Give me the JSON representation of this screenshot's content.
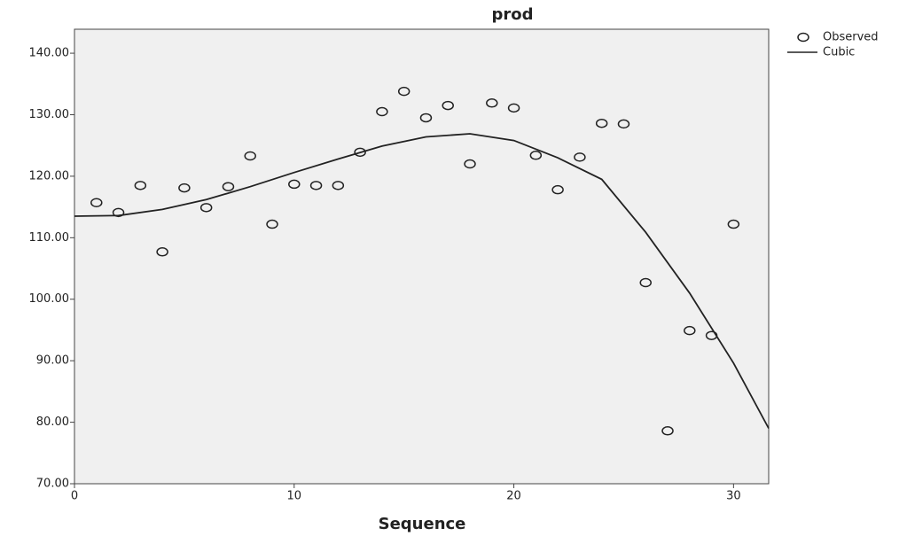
{
  "chart_data": {
    "type": "scatter",
    "title": "prod",
    "x_label": "Sequence",
    "xlim": [
      0,
      31.6
    ],
    "ylim": [
      70,
      143.9
    ],
    "xticks": [
      0,
      10,
      20,
      30
    ],
    "yticks": [
      {
        "value": 70,
        "label": "70.00"
      },
      {
        "value": 80,
        "label": "80.00"
      },
      {
        "value": 90,
        "label": "90.00"
      },
      {
        "value": 100,
        "label": "100.00"
      },
      {
        "value": 110,
        "label": "110.00"
      },
      {
        "value": 120,
        "label": "120.00"
      },
      {
        "value": 130,
        "label": "130.00"
      },
      {
        "value": 140,
        "label": "140.00"
      }
    ],
    "series": [
      {
        "name": "Observed",
        "color": "#222222",
        "marker": "circle",
        "x": [
          1,
          2,
          3,
          4,
          5,
          6,
          7,
          8,
          9,
          10,
          11,
          12,
          13,
          14,
          15,
          16,
          17,
          18,
          19,
          20,
          21,
          22,
          23,
          24,
          25,
          26,
          27,
          28,
          29,
          30
        ],
        "values": [
          115.7,
          114.1,
          118.5,
          107.7,
          118.1,
          114.9,
          118.3,
          123.3,
          112.2,
          118.7,
          118.5,
          118.5,
          123.9,
          130.5,
          133.8,
          129.5,
          131.5,
          122.0,
          131.9,
          131.1,
          123.4,
          117.8,
          123.1,
          128.6,
          128.5,
          102.7,
          78.6,
          94.9,
          94.1,
          112.2
        ]
      },
      {
        "name": "Cubic",
        "color": "#222222",
        "marker": "line",
        "x": [
          0,
          2,
          4,
          6,
          8,
          10,
          12,
          14,
          16,
          18,
          20,
          22,
          24,
          26,
          28,
          30,
          31.6
        ],
        "values": [
          113.5,
          113.6,
          114.6,
          116.2,
          118.3,
          120.6,
          122.8,
          124.9,
          126.4,
          126.9,
          125.8,
          123.0,
          119.5,
          110.9,
          101.0,
          89.6,
          79.0
        ]
      }
    ]
  }
}
